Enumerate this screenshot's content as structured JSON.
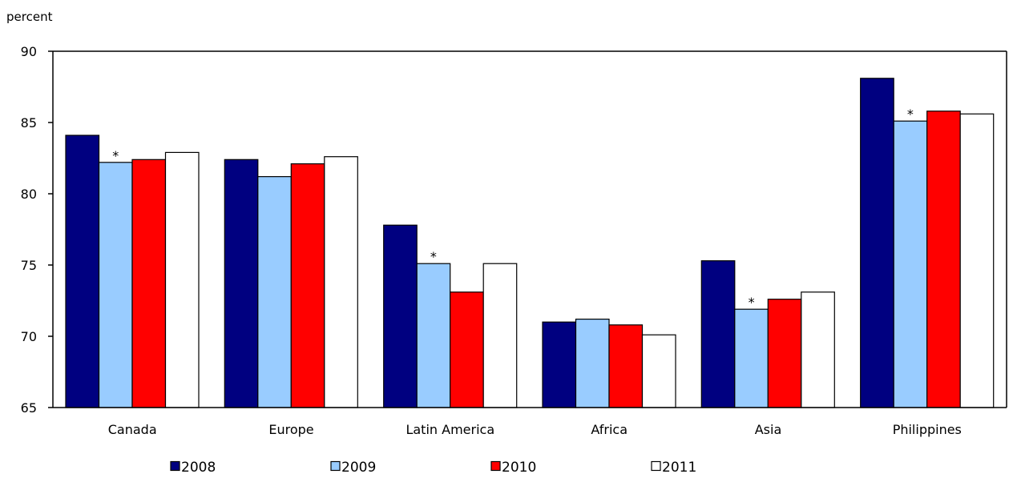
{
  "chart_data": {
    "type": "bar",
    "ylabel": "percent",
    "ylim": [
      65,
      90
    ],
    "yticks": [
      "65",
      "70",
      "75",
      "80",
      "85",
      "90"
    ],
    "categories": [
      "Canada",
      "Europe",
      "Latin America",
      "Africa",
      "Asia",
      "Philippines"
    ],
    "series": [
      {
        "name": "2008",
        "color": "#000080",
        "values": [
          84.1,
          82.4,
          77.8,
          71.0,
          75.3,
          88.1
        ]
      },
      {
        "name": "2009",
        "color": "#99ccff",
        "values": [
          82.2,
          81.2,
          75.1,
          71.2,
          71.9,
          85.1
        ]
      },
      {
        "name": "2010",
        "color": "#ff0000",
        "values": [
          82.4,
          82.1,
          73.1,
          70.8,
          72.6,
          85.8
        ]
      },
      {
        "name": "2011",
        "color": "#ffffff",
        "values": [
          82.9,
          82.6,
          75.1,
          70.1,
          73.1,
          85.6
        ]
      }
    ],
    "annotations": [
      {
        "series": "2009",
        "category": "Canada",
        "text": "*"
      },
      {
        "series": "2009",
        "category": "Latin America",
        "text": "*"
      },
      {
        "series": "2009",
        "category": "Asia",
        "text": "*"
      },
      {
        "series": "2009",
        "category": "Philippines",
        "text": "*"
      }
    ],
    "grid": false,
    "legend_position": "bottom"
  }
}
